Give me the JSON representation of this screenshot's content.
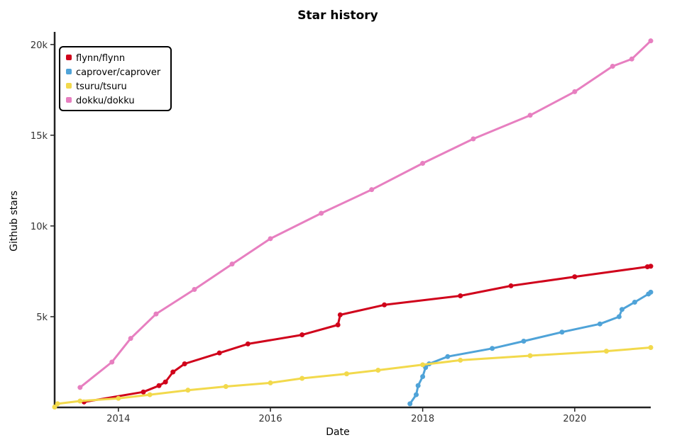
{
  "chart_data": {
    "type": "line",
    "title": "Star history",
    "xlabel": "Date",
    "ylabel": "Github stars",
    "x_ticks": [
      "2014",
      "2016",
      "2018",
      "2020"
    ],
    "y_ticks": [
      "5k",
      "10k",
      "15k",
      "20k"
    ],
    "xlim": [
      "2013-03-01",
      "2020-12-31"
    ],
    "ylim": [
      0,
      20500
    ],
    "legend_position": "top-left",
    "grid": false,
    "series": [
      {
        "name": "flynn/flynn",
        "color": "#d0021b",
        "points": [
          [
            "2013-07-20",
            300
          ],
          [
            "2014-05-01",
            850
          ],
          [
            "2014-07-15",
            1200
          ],
          [
            "2014-08-15",
            1400
          ],
          [
            "2014-09-20",
            1950
          ],
          [
            "2014-11-15",
            2400
          ],
          [
            "2015-05-01",
            3000
          ],
          [
            "2015-09-15",
            3500
          ],
          [
            "2016-06-01",
            4000
          ],
          [
            "2016-11-20",
            4550
          ],
          [
            "2016-12-01",
            5100
          ],
          [
            "2017-07-01",
            5650
          ],
          [
            "2018-07-01",
            6150
          ],
          [
            "2019-03-01",
            6700
          ],
          [
            "2020-01-01",
            7200
          ],
          [
            "2020-12-15",
            7750
          ],
          [
            "2020-12-31",
            7780
          ]
        ]
      },
      {
        "name": "caprover/caprover",
        "color": "#4fa3d8",
        "points": [
          [
            "2017-11-01",
            200
          ],
          [
            "2017-12-01",
            700
          ],
          [
            "2017-12-10",
            1200
          ],
          [
            "2018-01-01",
            1700
          ],
          [
            "2018-01-15",
            2200
          ],
          [
            "2018-02-01",
            2400
          ],
          [
            "2018-05-01",
            2800
          ],
          [
            "2018-12-01",
            3250
          ],
          [
            "2019-05-01",
            3650
          ],
          [
            "2019-11-01",
            4150
          ],
          [
            "2020-05-01",
            4600
          ],
          [
            "2020-08-01",
            5000
          ],
          [
            "2020-08-15",
            5400
          ],
          [
            "2020-10-15",
            5800
          ],
          [
            "2020-12-20",
            6250
          ],
          [
            "2020-12-31",
            6350
          ]
        ]
      },
      {
        "name": "tsuru/tsuru",
        "color": "#f2d94c",
        "points": [
          [
            "2013-03-01",
            20
          ],
          [
            "2013-03-15",
            200
          ],
          [
            "2013-07-01",
            350
          ],
          [
            "2014-01-01",
            500
          ],
          [
            "2014-06-01",
            700
          ],
          [
            "2014-12-01",
            950
          ],
          [
            "2015-06-01",
            1150
          ],
          [
            "2016-01-01",
            1350
          ],
          [
            "2016-06-01",
            1600
          ],
          [
            "2017-01-01",
            1850
          ],
          [
            "2017-06-01",
            2050
          ],
          [
            "2018-01-01",
            2350
          ],
          [
            "2018-07-01",
            2600
          ],
          [
            "2019-06-01",
            2850
          ],
          [
            "2020-06-01",
            3100
          ],
          [
            "2020-12-31",
            3300
          ]
        ]
      },
      {
        "name": "dokku/dokku",
        "color": "#e77fc0",
        "points": [
          [
            "2013-07-01",
            1100
          ],
          [
            "2013-12-01",
            2500
          ],
          [
            "2014-03-01",
            3800
          ],
          [
            "2014-07-01",
            5150
          ],
          [
            "2015-01-01",
            6500
          ],
          [
            "2015-07-01",
            7900
          ],
          [
            "2016-01-01",
            9300
          ],
          [
            "2016-09-01",
            10700
          ],
          [
            "2017-05-01",
            12000
          ],
          [
            "2018-01-01",
            13450
          ],
          [
            "2018-09-01",
            14800
          ],
          [
            "2019-06-01",
            16100
          ],
          [
            "2020-01-01",
            17400
          ],
          [
            "2020-07-01",
            18800
          ],
          [
            "2020-10-01",
            19200
          ],
          [
            "2020-12-31",
            20200
          ]
        ]
      }
    ]
  }
}
